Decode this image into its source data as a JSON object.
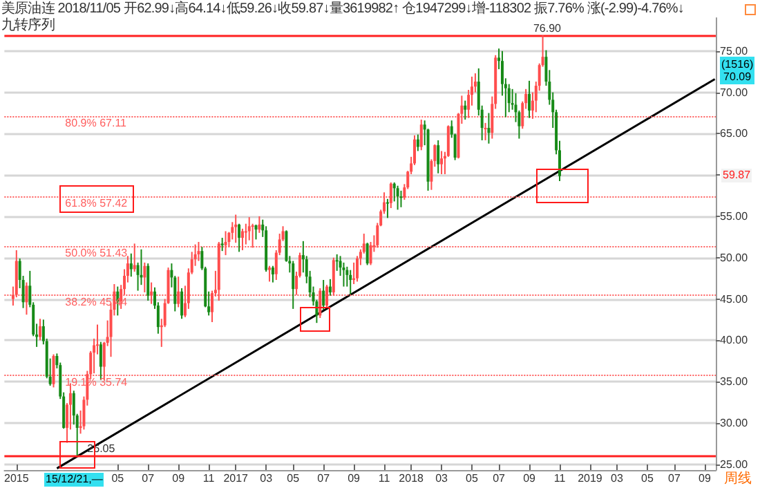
{
  "chart_data": {
    "type": "candlestick",
    "annotations": [
      "美原油连 2018/11/05 开62.99↓高64.14↓低59.26↓收59.87↓量3619982↑ 仓1947299↓增-118302 振7.76% 涨(-2.99)-4.76%↓",
      "九转序列",
      "15/12/21,—",
      "(1516)\n70.09",
      "59.87",
      "周线"
    ],
    "x": [
      "2015-09-28",
      "2015-10-05",
      "2015-10-12",
      "2015-10-19",
      "2015-10-26",
      "2015-11-02",
      "2015-11-09",
      "2015-11-16",
      "2015-11-23",
      "2015-11-30",
      "2015-12-07",
      "2015-12-14",
      "2015-12-21",
      "2015-12-28",
      "2016-01-04",
      "2016-01-11",
      "2016-01-18",
      "2016-01-25",
      "2016-02-01",
      "2016-02-08",
      "2016-02-15",
      "2016-02-22",
      "2016-02-29",
      "2016-03-07",
      "2016-03-14",
      "2016-03-21",
      "2016-03-28",
      "2016-04-04",
      "2016-04-11",
      "2016-04-18",
      "2016-04-25",
      "2016-05-02",
      "2016-05-09",
      "2016-05-16",
      "2016-05-23",
      "2016-05-30",
      "2016-06-06",
      "2016-06-13",
      "2016-06-20",
      "2016-06-27",
      "2016-07-04",
      "2016-07-11",
      "2016-07-18",
      "2016-07-25",
      "2016-08-01",
      "2016-08-08",
      "2016-08-15",
      "2016-08-22",
      "2016-08-29",
      "2016-09-05",
      "2016-09-12",
      "2016-09-19",
      "2016-09-26",
      "2016-10-03",
      "2016-10-10",
      "2016-10-17",
      "2016-10-24",
      "2016-10-31",
      "2016-11-07",
      "2016-11-14",
      "2016-11-21",
      "2016-11-28",
      "2016-12-05",
      "2016-12-12",
      "2016-12-19",
      "2016-12-26",
      "2017-01-02",
      "2017-01-09",
      "2017-01-16",
      "2017-01-23",
      "2017-01-30",
      "2017-02-06",
      "2017-02-13",
      "2017-02-20",
      "2017-02-27",
      "2017-03-06",
      "2017-03-13",
      "2017-03-20",
      "2017-03-27",
      "2017-04-03",
      "2017-04-10",
      "2017-04-17",
      "2017-04-24",
      "2017-05-01",
      "2017-05-08",
      "2017-05-15",
      "2017-05-22",
      "2017-05-29",
      "2017-06-05",
      "2017-06-12",
      "2017-06-19",
      "2017-06-26",
      "2017-07-03",
      "2017-07-10",
      "2017-07-17",
      "2017-07-24",
      "2017-07-31",
      "2017-08-07",
      "2017-08-14",
      "2017-08-21",
      "2017-08-28",
      "2017-09-04",
      "2017-09-11",
      "2017-09-18",
      "2017-09-25",
      "2017-10-02",
      "2017-10-09",
      "2017-10-16",
      "2017-10-23",
      "2017-10-30",
      "2017-11-06",
      "2017-11-13",
      "2017-11-20",
      "2017-11-27",
      "2017-12-04",
      "2017-12-11",
      "2017-12-18",
      "2017-12-25",
      "2018-01-01",
      "2018-01-08",
      "2018-01-15",
      "2018-01-22",
      "2018-01-29",
      "2018-02-05",
      "2018-02-12",
      "2018-02-19",
      "2018-02-26",
      "2018-03-05",
      "2018-03-12",
      "2018-03-19",
      "2018-03-26",
      "2018-04-02",
      "2018-04-09",
      "2018-04-16",
      "2018-04-23",
      "2018-04-30",
      "2018-05-07",
      "2018-05-14",
      "2018-05-21",
      "2018-05-28",
      "2018-06-04",
      "2018-06-11",
      "2018-06-18",
      "2018-06-25",
      "2018-07-02",
      "2018-07-09",
      "2018-07-16",
      "2018-07-23",
      "2018-07-30",
      "2018-08-06",
      "2018-08-13",
      "2018-08-20",
      "2018-08-27",
      "2018-09-03",
      "2018-09-10",
      "2018-09-17",
      "2018-09-24",
      "2018-10-01",
      "2018-10-08",
      "2018-10-15",
      "2018-10-22",
      "2018-10-29",
      "2018-11-05"
    ],
    "ohlc": [
      [
        45.0,
        46.5,
        44.2,
        45.5
      ],
      [
        45.5,
        50.9,
        45.2,
        49.6
      ],
      [
        49.6,
        49.9,
        46.3,
        47.3
      ],
      [
        47.3,
        47.8,
        43.9,
        44.6
      ],
      [
        44.6,
        47.0,
        43.1,
        46.6
      ],
      [
        46.6,
        48.4,
        44.0,
        44.3
      ],
      [
        44.3,
        44.6,
        40.5,
        40.7
      ],
      [
        40.7,
        42.0,
        39.2,
        40.4
      ],
      [
        40.4,
        42.6,
        40.0,
        41.7
      ],
      [
        41.7,
        42.5,
        39.5,
        39.9
      ],
      [
        39.9,
        40.2,
        35.4,
        35.6
      ],
      [
        35.6,
        37.8,
        34.5,
        34.7
      ],
      [
        34.7,
        38.3,
        34.3,
        38.1
      ],
      [
        38.1,
        38.4,
        36.6,
        37.0
      ],
      [
        37.0,
        37.3,
        32.9,
        33.2
      ],
      [
        33.2,
        33.7,
        29.3,
        29.4
      ],
      [
        29.4,
        32.4,
        27.6,
        32.2
      ],
      [
        32.2,
        34.8,
        29.2,
        33.6
      ],
      [
        33.6,
        33.9,
        29.8,
        30.9
      ],
      [
        30.9,
        31.1,
        26.05,
        29.4
      ],
      [
        29.4,
        31.5,
        28.7,
        29.6
      ],
      [
        29.6,
        33.2,
        29.2,
        32.8
      ],
      [
        32.8,
        36.3,
        32.1,
        35.9
      ],
      [
        35.9,
        38.7,
        35.3,
        38.5
      ],
      [
        38.5,
        40.2,
        36.0,
        39.4
      ],
      [
        39.4,
        41.9,
        38.3,
        39.5
      ],
      [
        39.5,
        39.8,
        35.2,
        36.8
      ],
      [
        36.8,
        39.8,
        35.2,
        39.7
      ],
      [
        39.7,
        42.4,
        39.3,
        40.4
      ],
      [
        40.4,
        44.5,
        38.0,
        43.7
      ],
      [
        43.7,
        46.8,
        43.0,
        45.9
      ],
      [
        45.9,
        46.5,
        43.0,
        44.7
      ],
      [
        44.7,
        46.7,
        43.8,
        46.2
      ],
      [
        46.2,
        48.6,
        45.5,
        47.8
      ],
      [
        47.8,
        50.2,
        47.0,
        49.3
      ],
      [
        49.3,
        50.5,
        47.7,
        48.6
      ],
      [
        48.6,
        51.7,
        48.3,
        49.1
      ],
      [
        49.1,
        49.4,
        46.0,
        47.9
      ],
      [
        47.9,
        51.0,
        46.7,
        47.6
      ],
      [
        47.6,
        49.4,
        45.8,
        48.99
      ],
      [
        49.0,
        49.3,
        44.8,
        45.4
      ],
      [
        45.4,
        47.0,
        44.4,
        45.9
      ],
      [
        45.9,
        46.4,
        43.8,
        44.2
      ],
      [
        44.2,
        44.6,
        40.8,
        41.6
      ],
      [
        41.6,
        42.6,
        39.2,
        41.8
      ],
      [
        41.8,
        45.0,
        41.6,
        44.5
      ],
      [
        44.5,
        48.8,
        44.4,
        48.5
      ],
      [
        48.5,
        49.3,
        46.4,
        47.6
      ],
      [
        47.6,
        47.8,
        43.5,
        44.4
      ],
      [
        44.4,
        47.7,
        44.0,
        45.9
      ],
      [
        45.9,
        46.3,
        42.6,
        43.0
      ],
      [
        43.0,
        46.6,
        42.8,
        44.5
      ],
      [
        44.5,
        48.7,
        43.8,
        48.2
      ],
      [
        48.2,
        50.7,
        48.0,
        49.8
      ],
      [
        49.8,
        51.6,
        49.0,
        50.4
      ],
      [
        50.4,
        51.9,
        49.6,
        50.8
      ],
      [
        50.8,
        51.3,
        48.5,
        48.7
      ],
      [
        48.7,
        48.9,
        44.0,
        44.1
      ],
      [
        44.1,
        45.9,
        43.0,
        43.4
      ],
      [
        43.4,
        46.0,
        42.2,
        45.7
      ],
      [
        45.7,
        48.4,
        45.3,
        46.1
      ],
      [
        46.1,
        51.9,
        44.8,
        51.7
      ],
      [
        51.7,
        52.4,
        50.8,
        51.5
      ],
      [
        51.5,
        53.2,
        50.3,
        51.9
      ],
      [
        51.9,
        53.1,
        51.3,
        53.0
      ],
      [
        53.0,
        54.3,
        52.2,
        53.7
      ],
      [
        53.7,
        55.2,
        51.8,
        54.0
      ],
      [
        54.0,
        54.1,
        50.7,
        52.4
      ],
      [
        52.4,
        53.5,
        50.9,
        53.2
      ],
      [
        53.2,
        54.1,
        51.6,
        53.2
      ],
      [
        53.2,
        54.9,
        52.1,
        53.8
      ],
      [
        53.8,
        54.1,
        51.2,
        53.9
      ],
      [
        53.9,
        54.0,
        52.2,
        53.4
      ],
      [
        53.4,
        55.0,
        53.0,
        54.0
      ],
      [
        54.0,
        54.6,
        52.5,
        53.3
      ],
      [
        53.3,
        53.8,
        48.3,
        48.5
      ],
      [
        48.5,
        49.0,
        47.1,
        48.8
      ],
      [
        48.8,
        49.0,
        47.0,
        47.97
      ],
      [
        48.0,
        50.9,
        47.3,
        50.6
      ],
      [
        50.6,
        52.9,
        50.3,
        52.2
      ],
      [
        52.2,
        53.8,
        52.0,
        53.2
      ],
      [
        53.2,
        53.3,
        49.5,
        49.6
      ],
      [
        49.6,
        50.2,
        48.2,
        49.3
      ],
      [
        49.3,
        49.6,
        43.8,
        46.2
      ],
      [
        46.2,
        48.3,
        45.5,
        47.8
      ],
      [
        47.8,
        50.6,
        47.6,
        50.3
      ],
      [
        50.3,
        52.0,
        48.2,
        49.8
      ],
      [
        49.8,
        50.2,
        46.9,
        47.7
      ],
      [
        47.7,
        48.4,
        45.2,
        45.8
      ],
      [
        45.8,
        46.5,
        44.2,
        44.7
      ],
      [
        44.7,
        44.9,
        42.1,
        43.0
      ],
      [
        43.0,
        46.3,
        42.7,
        46.0
      ],
      [
        46.0,
        47.3,
        43.7,
        44.2
      ],
      [
        44.2,
        46.7,
        43.9,
        46.5
      ],
      [
        46.5,
        47.4,
        45.4,
        45.8
      ],
      [
        45.8,
        50.0,
        45.4,
        49.7
      ],
      [
        49.7,
        50.4,
        48.4,
        49.6
      ],
      [
        49.6,
        50.2,
        47.8,
        48.8
      ],
      [
        48.8,
        49.4,
        46.5,
        48.5
      ],
      [
        48.5,
        48.9,
        46.5,
        47.9
      ],
      [
        47.9,
        48.5,
        45.6,
        47.3
      ],
      [
        47.3,
        49.4,
        46.8,
        47.5
      ],
      [
        47.5,
        50.2,
        47.1,
        49.9
      ],
      [
        49.9,
        51.0,
        49.1,
        50.7
      ],
      [
        50.7,
        52.9,
        50.5,
        51.7
      ],
      [
        51.7,
        51.8,
        49.1,
        49.3
      ],
      [
        49.3,
        51.9,
        49.1,
        51.5
      ],
      [
        51.5,
        52.7,
        50.7,
        51.5
      ],
      [
        51.5,
        54.2,
        51.2,
        53.9
      ],
      [
        53.9,
        55.8,
        53.8,
        55.6
      ],
      [
        55.6,
        57.9,
        55.3,
        56.7
      ],
      [
        56.7,
        57.1,
        54.8,
        56.6
      ],
      [
        56.6,
        59.1,
        56.0,
        58.95
      ],
      [
        58.95,
        59.1,
        56.8,
        58.4
      ],
      [
        58.4,
        58.7,
        55.8,
        57.4
      ],
      [
        57.4,
        58.1,
        56.1,
        57.3
      ],
      [
        57.3,
        58.9,
        57.0,
        58.5
      ],
      [
        58.5,
        60.5,
        58.3,
        60.4
      ],
      [
        60.4,
        62.2,
        60.1,
        61.4
      ],
      [
        61.4,
        64.8,
        61.2,
        64.3
      ],
      [
        64.3,
        64.9,
        62.9,
        63.4
      ],
      [
        63.4,
        66.7,
        63.0,
        66.1
      ],
      [
        66.1,
        66.6,
        63.6,
        65.5
      ],
      [
        65.5,
        65.6,
        58.1,
        59.2
      ],
      [
        59.2,
        61.9,
        58.2,
        61.7
      ],
      [
        61.7,
        63.7,
        61.0,
        63.6
      ],
      [
        63.6,
        64.2,
        60.2,
        61.3
      ],
      [
        61.3,
        62.9,
        60.1,
        62.0
      ],
      [
        62.0,
        62.8,
        60.1,
        62.3
      ],
      [
        62.3,
        66.0,
        62.2,
        65.9
      ],
      [
        65.9,
        66.6,
        64.5,
        64.9
      ],
      [
        64.9,
        65.0,
        61.8,
        62.1
      ],
      [
        62.1,
        67.5,
        62.0,
        67.4
      ],
      [
        67.4,
        69.6,
        66.2,
        68.4
      ],
      [
        68.4,
        69.0,
        66.7,
        67.9
      ],
      [
        67.9,
        70.3,
        66.9,
        69.7
      ],
      [
        69.7,
        71.9,
        68.4,
        70.7
      ],
      [
        70.7,
        72.3,
        70.0,
        71.3
      ],
      [
        71.3,
        72.9,
        67.2,
        67.9
      ],
      [
        67.9,
        68.4,
        64.2,
        65.7
      ],
      [
        65.7,
        66.3,
        64.2,
        65.7
      ],
      [
        65.7,
        67.5,
        63.8,
        65.1
      ],
      [
        65.1,
        69.5,
        64.4,
        68.6
      ],
      [
        68.6,
        74.5,
        68.0,
        74.2
      ],
      [
        74.2,
        75.3,
        72.8,
        73.8
      ],
      [
        73.8,
        75.0,
        69.6,
        71.0
      ],
      [
        71.0,
        71.7,
        67.0,
        70.5
      ],
      [
        70.5,
        71.0,
        67.6,
        68.7
      ],
      [
        68.7,
        70.4,
        67.9,
        68.5
      ],
      [
        68.5,
        69.9,
        66.4,
        67.6
      ],
      [
        67.6,
        67.8,
        64.4,
        65.9
      ],
      [
        65.9,
        68.9,
        65.6,
        68.7
      ],
      [
        68.7,
        70.4,
        68.0,
        69.8
      ],
      [
        69.8,
        71.4,
        66.9,
        67.8
      ],
      [
        67.8,
        70.0,
        66.8,
        68.99
      ],
      [
        69.0,
        71.3,
        67.6,
        70.8
      ],
      [
        70.8,
        73.5,
        70.2,
        73.3
      ],
      [
        73.3,
        76.9,
        73.1,
        74.3
      ],
      [
        74.3,
        75.1,
        70.8,
        71.3
      ],
      [
        71.3,
        72.7,
        68.5,
        69.1
      ],
      [
        69.1,
        70.0,
        65.7,
        67.6
      ],
      [
        67.6,
        67.9,
        62.5,
        62.99
      ],
      [
        62.99,
        64.14,
        59.26,
        59.87
      ]
    ],
    "series": [
      {
        "type": "line",
        "x": [
          "2015-12-28",
          "2019-09-23"
        ],
        "values": [
          24.5,
          71.6
        ],
        "color": "#000000"
      }
    ],
    "xlim": [
      "2015-09-10",
      "2019-09-25"
    ],
    "xticks": [
      {
        "value": "2015-10-05",
        "label": "2015"
      },
      {
        "value": "2016-05-02",
        "label": "05"
      },
      {
        "value": "2016-07-04",
        "label": "07"
      },
      {
        "value": "2016-09-05",
        "label": "09"
      },
      {
        "value": "2016-11-07",
        "label": "11"
      },
      {
        "value": "2017-01-02",
        "label": "2017"
      },
      {
        "value": "2017-03-06",
        "label": "03"
      },
      {
        "value": "2017-05-01",
        "label": "05"
      },
      {
        "value": "2017-07-03",
        "label": "07"
      },
      {
        "value": "2017-09-04",
        "label": "09"
      },
      {
        "value": "2017-11-06",
        "label": "11"
      },
      {
        "value": "2018-01-01",
        "label": "2018"
      },
      {
        "value": "2018-03-05",
        "label": "03"
      },
      {
        "value": "2018-05-07",
        "label": "05"
      },
      {
        "value": "2018-07-02",
        "label": "07"
      },
      {
        "value": "2018-09-03",
        "label": "09"
      },
      {
        "value": "2018-11-05",
        "label": "11"
      },
      {
        "value": "2019-01-07",
        "label": "2019"
      },
      {
        "value": "2019-03-04",
        "label": "03"
      },
      {
        "value": "2019-05-06",
        "label": "05"
      },
      {
        "value": "2019-07-01",
        "label": "07"
      },
      {
        "value": "2019-09-02",
        "label": "09"
      }
    ],
    "ylim": [
      24.3,
      79.0
    ],
    "yticks": [
      {
        "value": 25,
        "label": "25.00"
      },
      {
        "value": 30,
        "label": "30.00"
      },
      {
        "value": 35,
        "label": "35.00"
      },
      {
        "value": 40,
        "label": "40.00"
      },
      {
        "value": 45,
        "label": "45.00"
      },
      {
        "value": 50,
        "label": "50.00"
      },
      {
        "value": 55,
        "label": "55.00"
      },
      {
        "value": 60,
        "label": null
      },
      {
        "value": 65,
        "label": "65.00"
      },
      {
        "value": 70,
        "label": "70.00"
      },
      {
        "value": 75,
        "label": "75.00"
      }
    ],
    "ref_lines": [
      {
        "axis": "y",
        "value": 76.9,
        "label": "76.90",
        "color": "#ff2020",
        "line_style": "solid"
      },
      {
        "axis": "y",
        "value": 67.11,
        "label": "80.9% 67.11",
        "color": "#ff6060",
        "line_style": "dotted"
      },
      {
        "axis": "y",
        "value": 57.42,
        "label": "61.8% 57.42",
        "color": "#ff6060",
        "line_style": "dotted"
      },
      {
        "axis": "y",
        "value": 51.43,
        "label": "50.0% 51.43",
        "color": "#ff6060",
        "line_style": "dotted"
      },
      {
        "axis": "y",
        "value": 45.44,
        "label": "38.2% 45.44",
        "color": "#ff6060",
        "line_style": "dotted"
      },
      {
        "axis": "y",
        "value": 35.74,
        "label": "19.1% 35.74",
        "color": "#ff6060",
        "line_style": "dotted"
      },
      {
        "axis": "y",
        "value": 26.05,
        "label": "26.05",
        "color": "#ff2020",
        "line_style": "solid"
      }
    ],
    "grid": "y"
  }
}
